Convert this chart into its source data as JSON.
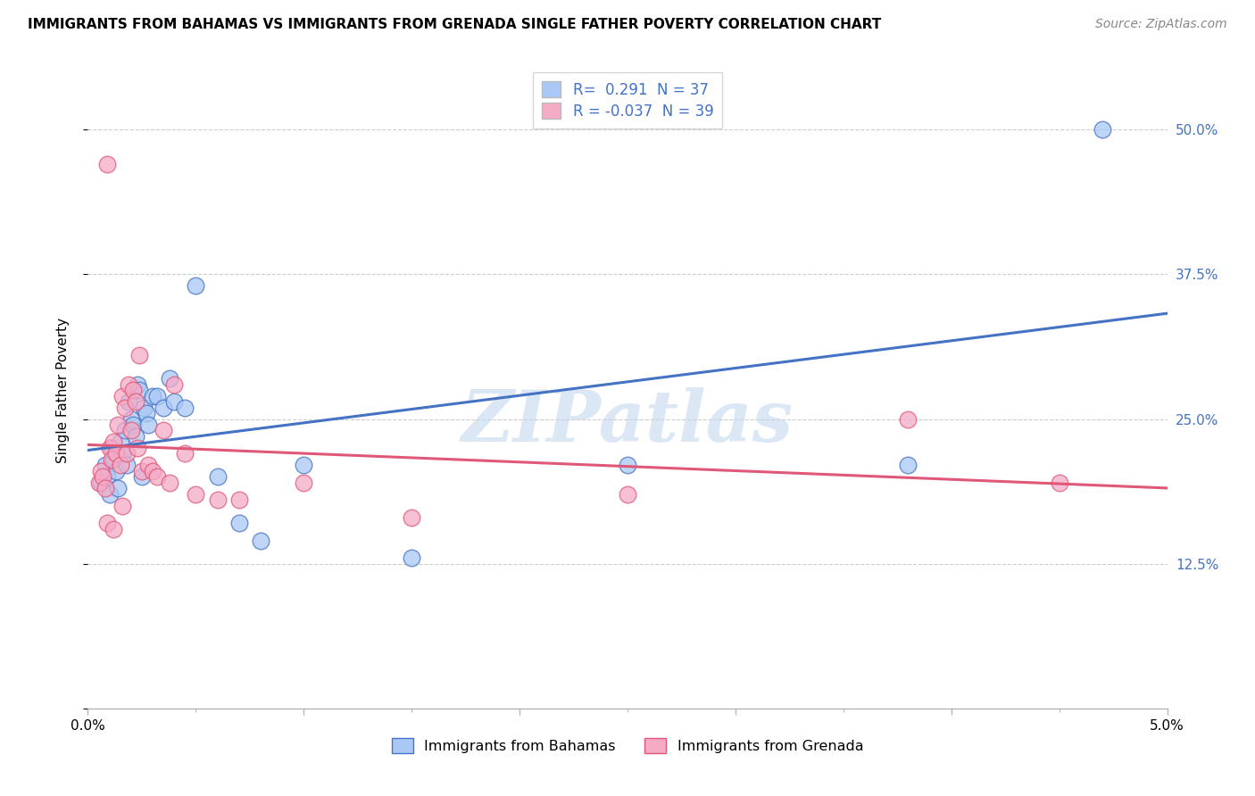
{
  "title": "IMMIGRANTS FROM BAHAMAS VS IMMIGRANTS FROM GRENADA SINGLE FATHER POVERTY CORRELATION CHART",
  "source": "Source: ZipAtlas.com",
  "ylabel": "Single Father Poverty",
  "legend_label1": "Immigrants from Bahamas",
  "legend_label2": "Immigrants from Grenada",
  "r1": " 0.291",
  "n1": "37",
  "r2": "-0.037",
  "n2": "39",
  "xmin": 0.0,
  "xmax": 5.0,
  "ymin": 0.0,
  "ymax": 55.0,
  "yticks": [
    0.0,
    12.5,
    25.0,
    37.5,
    50.0
  ],
  "ytick_labels": [
    "",
    "12.5%",
    "25.0%",
    "37.5%",
    "50.0%"
  ],
  "color_bahamas": "#aac8f5",
  "color_grenada": "#f5aac5",
  "line_color_bahamas": "#4472c4",
  "line_color_grenada": "#e05878",
  "watermark_text": "ZIPatlas",
  "bahamas_x": [
    0.06,
    0.08,
    0.09,
    0.1,
    0.11,
    0.12,
    0.13,
    0.14,
    0.15,
    0.16,
    0.17,
    0.18,
    0.19,
    0.2,
    0.21,
    0.22,
    0.23,
    0.24,
    0.25,
    0.26,
    0.27,
    0.28,
    0.3,
    0.32,
    0.35,
    0.38,
    0.4,
    0.45,
    0.5,
    0.6,
    0.7,
    0.8,
    1.0,
    1.5,
    2.5,
    3.8,
    4.7
  ],
  "bahamas_y": [
    19.5,
    21.0,
    20.0,
    18.5,
    22.5,
    21.5,
    20.5,
    19.0,
    23.0,
    22.0,
    24.0,
    21.0,
    26.5,
    25.0,
    24.5,
    23.5,
    28.0,
    27.5,
    20.0,
    26.0,
    25.5,
    24.5,
    27.0,
    27.0,
    26.0,
    28.5,
    26.5,
    26.0,
    36.5,
    20.0,
    16.0,
    14.5,
    21.0,
    13.0,
    21.0,
    21.0,
    50.0
  ],
  "grenada_x": [
    0.05,
    0.06,
    0.07,
    0.08,
    0.09,
    0.1,
    0.11,
    0.12,
    0.13,
    0.14,
    0.15,
    0.16,
    0.17,
    0.18,
    0.19,
    0.2,
    0.21,
    0.22,
    0.23,
    0.24,
    0.25,
    0.28,
    0.3,
    0.32,
    0.35,
    0.38,
    0.4,
    0.45,
    0.5,
    0.6,
    0.7,
    1.0,
    1.5,
    2.5,
    3.8,
    4.5,
    0.09,
    0.12,
    0.16
  ],
  "grenada_y": [
    19.5,
    20.5,
    20.0,
    19.0,
    47.0,
    22.5,
    21.5,
    23.0,
    22.0,
    24.5,
    21.0,
    27.0,
    26.0,
    22.0,
    28.0,
    24.0,
    27.5,
    26.5,
    22.5,
    30.5,
    20.5,
    21.0,
    20.5,
    20.0,
    24.0,
    19.5,
    28.0,
    22.0,
    18.5,
    18.0,
    18.0,
    19.5,
    16.5,
    18.5,
    25.0,
    19.5,
    16.0,
    15.5,
    17.5
  ]
}
